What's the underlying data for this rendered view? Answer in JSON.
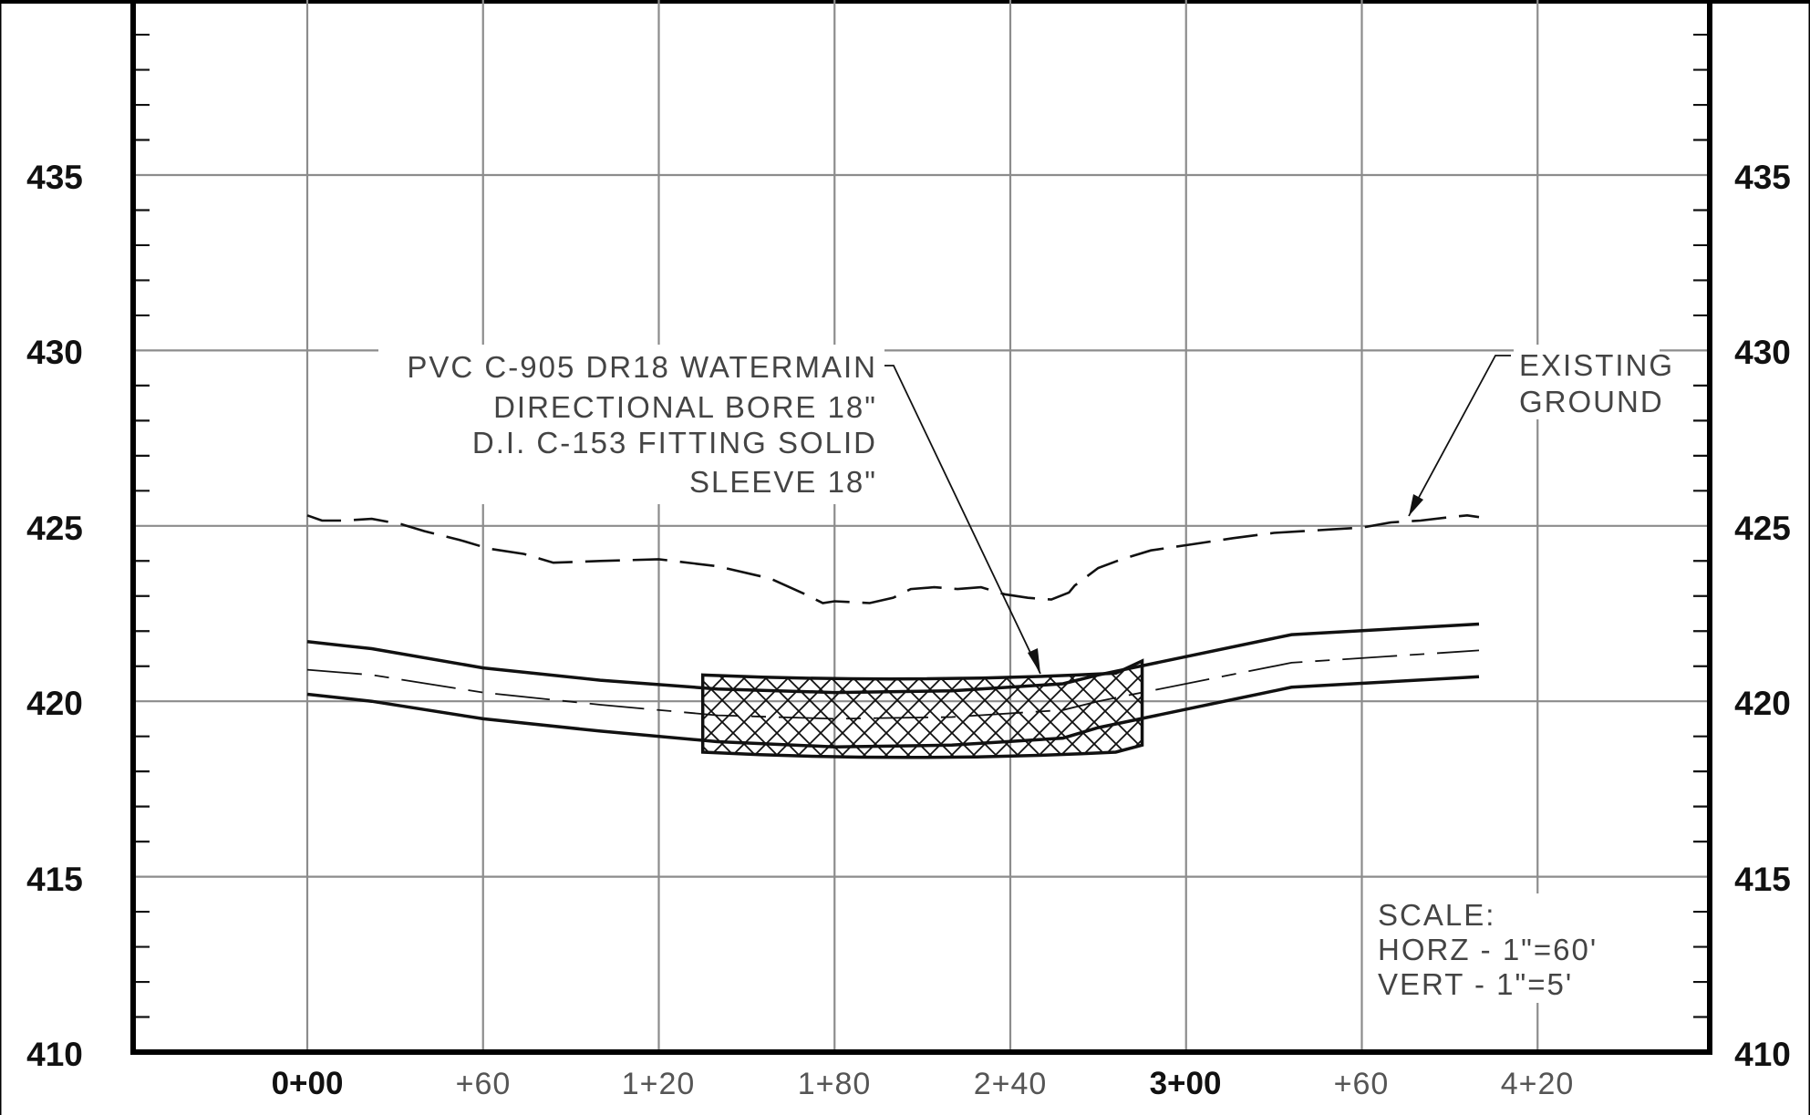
{
  "elevation_axis": {
    "labels": [
      "410",
      "415",
      "420",
      "425",
      "430",
      "435"
    ],
    "values": [
      410,
      415,
      420,
      425,
      430,
      435
    ],
    "range": [
      410,
      440
    ]
  },
  "station_axis": {
    "labels": [
      "0+00",
      "+60",
      "1+20",
      "1+80",
      "2+40",
      "3+00",
      "+60",
      "4+20"
    ],
    "values": [
      0,
      60,
      120,
      180,
      240,
      300,
      360,
      420
    ],
    "major": [
      true,
      false,
      false,
      false,
      false,
      true,
      false,
      false
    ],
    "range": [
      -60,
      480
    ]
  },
  "existing_ground": {
    "stations": [
      0,
      5,
      12,
      22,
      32,
      40,
      52,
      62,
      74,
      84,
      100,
      120,
      140,
      158,
      170,
      176,
      180,
      192,
      200,
      206,
      214,
      222,
      230,
      238,
      246,
      254,
      260,
      262,
      270,
      278,
      288,
      300,
      316,
      330,
      340,
      350,
      360,
      370,
      380,
      390,
      396,
      400
    ],
    "elevations": [
      425.3,
      425.15,
      425.15,
      425.2,
      425.05,
      424.85,
      424.6,
      424.35,
      424.2,
      423.95,
      424.0,
      424.05,
      423.85,
      423.5,
      423.05,
      422.8,
      422.85,
      422.8,
      422.95,
      423.2,
      423.25,
      423.2,
      423.25,
      423.05,
      422.95,
      422.9,
      423.1,
      423.3,
      423.8,
      424.05,
      424.3,
      424.45,
      424.65,
      424.8,
      424.85,
      424.9,
      424.95,
      425.1,
      425.15,
      425.25,
      425.3,
      425.25
    ]
  },
  "pipe": {
    "top_stations": [
      0,
      22,
      60,
      100,
      140,
      180,
      220,
      258,
      270,
      336,
      400
    ],
    "top_elevations": [
      421.7,
      421.5,
      420.95,
      420.6,
      420.35,
      420.25,
      420.3,
      420.5,
      420.75,
      421.9,
      422.2
    ],
    "bottom_stations": [
      0,
      22,
      60,
      100,
      140,
      180,
      220,
      258,
      270,
      336,
      400
    ],
    "bottom_elevations": [
      420.2,
      420.0,
      419.5,
      419.15,
      418.85,
      418.7,
      418.75,
      418.95,
      419.25,
      420.4,
      420.7
    ],
    "centerline_stations": [
      0,
      22,
      60,
      100,
      140,
      180,
      220,
      258,
      270,
      336,
      400
    ],
    "centerline_elevations": [
      420.9,
      420.75,
      420.25,
      419.9,
      419.6,
      419.5,
      419.55,
      419.75,
      420.0,
      421.1,
      421.45
    ]
  },
  "sleeve": {
    "station_start": 135,
    "station_end": 285,
    "taper_station": 276,
    "top_left": 420.75,
    "top_mid": 420.6,
    "top_right_taper": 420.8,
    "top_right": 421.15,
    "bottom_left": 418.55,
    "bottom_mid": 418.35,
    "bottom_right_taper": 418.55,
    "bottom_right": 418.75
  },
  "annotations": {
    "pipe_note": [
      "PVC C-905 DR18 WATERMAIN",
      "DIRECTIONAL BORE 18\"",
      "D.I. C-153 FITTING SOLID",
      "SLEEVE 18\""
    ],
    "ground_note": [
      "EXISTING",
      "GROUND"
    ],
    "scale_note": [
      "SCALE:",
      "HORZ  -  1\"=60'",
      "VERT  -  1\"=5'"
    ]
  },
  "colors": {
    "frame": "#000000",
    "grid": "#8c8c8c",
    "linework": "#111111"
  }
}
